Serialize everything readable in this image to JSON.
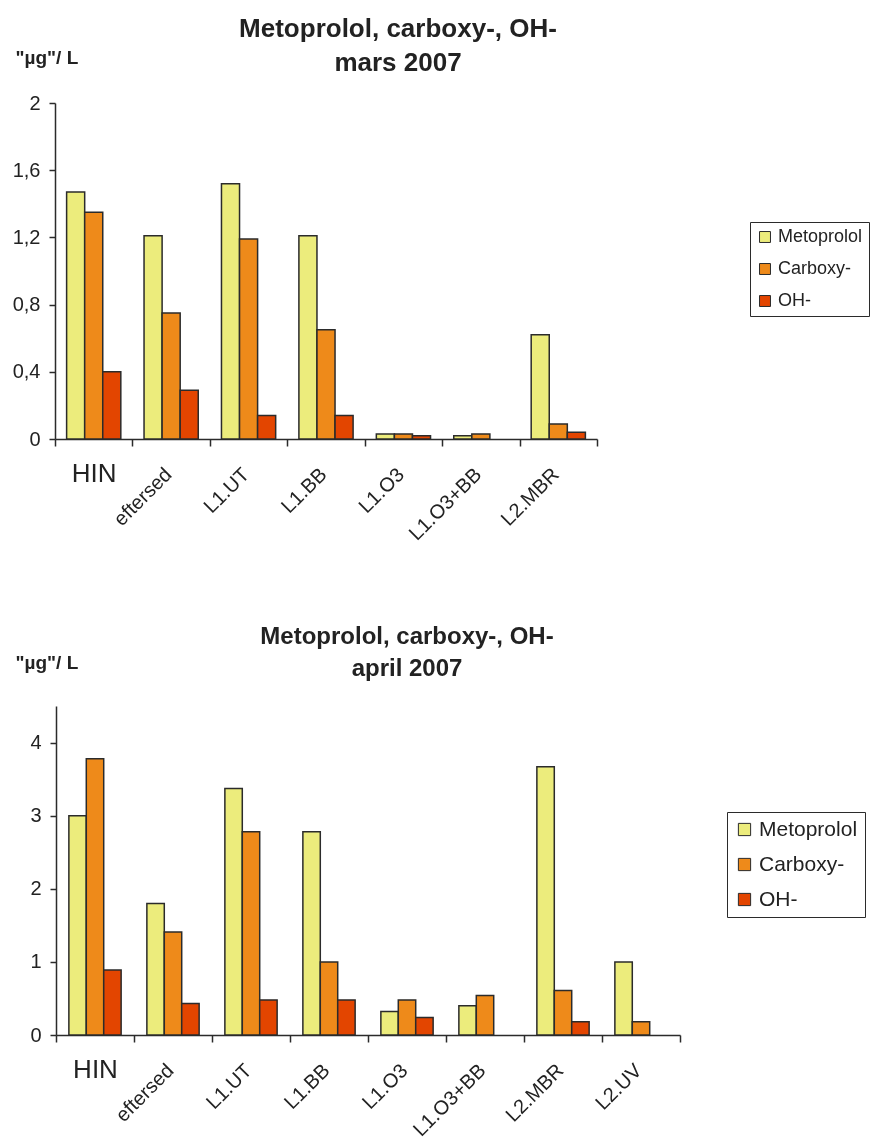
{
  "chart_data": [
    {
      "type": "bar",
      "title": "Metoprolol, carboxy-, OH-",
      "subtitle": "mars 2007",
      "ylabel": "\"µg\"/ L",
      "categories": [
        "HIN",
        "eftersed",
        "L1.UT",
        "L1.BB",
        "L1.O3",
        "L1.O3+BB",
        "L2.MBR"
      ],
      "series": [
        {
          "name": "Metoprolol",
          "color": "#ecec7c",
          "values": [
            1.47,
            1.21,
            1.52,
            1.21,
            0.03,
            0.02,
            0.62
          ]
        },
        {
          "name": "Carboxy-",
          "color": "#ee8a1a",
          "values": [
            1.35,
            0.75,
            1.19,
            0.65,
            0.03,
            0.03,
            0.09
          ]
        },
        {
          "name": "OH-",
          "color": "#e34500",
          "values": [
            0.4,
            0.29,
            0.14,
            0.14,
            0.02,
            null,
            0.04
          ]
        }
      ],
      "ylim": [
        0,
        2
      ],
      "yticks": [
        0,
        {
          "value": 0.4,
          "label": "0,4"
        },
        {
          "value": 0.8,
          "label": "0,8"
        },
        {
          "value": 1.2,
          "label": "1,2"
        },
        {
          "value": 1.6,
          "label": "1,6"
        },
        2
      ],
      "legend": "right"
    },
    {
      "type": "bar",
      "title": "Metoprolol, carboxy-, OH-",
      "subtitle": "april 2007",
      "ylabel": "\"µg\"/ L",
      "categories": [
        "HIN",
        "eftersed",
        "L1.UT",
        "L1.BB",
        "L1.O3",
        "L1.O3+BB",
        "L2.MBR",
        "L2.UV"
      ],
      "series": [
        {
          "name": "Metoprolol",
          "color": "#ecec7c",
          "values": [
            3.0,
            1.8,
            3.37,
            2.78,
            0.32,
            0.4,
            3.67,
            1.0
          ]
        },
        {
          "name": "Carboxy-",
          "color": "#ee8a1a",
          "values": [
            3.78,
            1.41,
            2.78,
            1.0,
            0.48,
            0.54,
            0.61,
            0.18
          ]
        },
        {
          "name": "OH-",
          "color": "#e34500",
          "values": [
            0.89,
            0.43,
            0.48,
            0.48,
            0.24,
            null,
            0.18,
            null
          ]
        }
      ],
      "ylim": [
        0,
        4.5
      ],
      "yticks": [
        0,
        1,
        2,
        3,
        4
      ],
      "legend": "right"
    }
  ]
}
